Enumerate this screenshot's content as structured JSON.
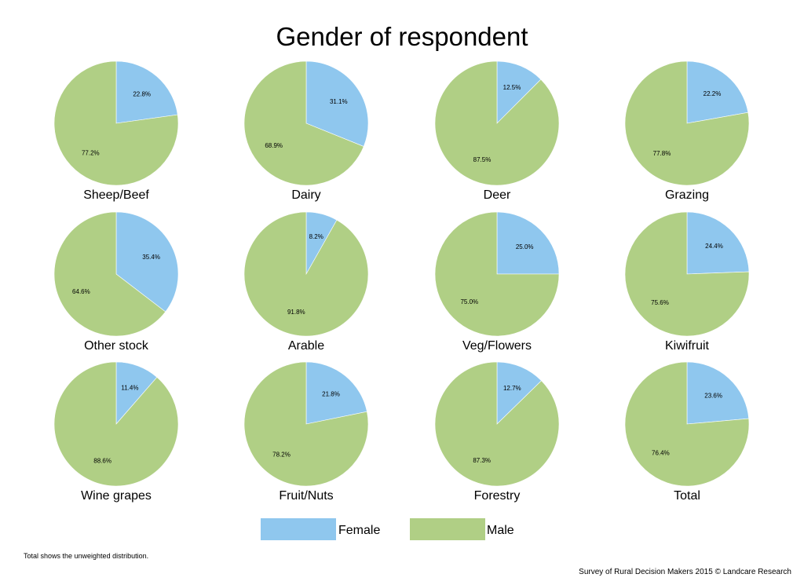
{
  "colors": {
    "female": "#8fc7ee",
    "male": "#b0cf85",
    "stroke": "#ffffff"
  },
  "chart_data": {
    "type": "pie",
    "title": "Gender of respondent",
    "legend": {
      "placement": "bottom",
      "entries": [
        "Female",
        "Male"
      ]
    },
    "pies": [
      {
        "label": "Sheep/Beef",
        "slices": [
          {
            "name": "Female",
            "value": 22.8
          },
          {
            "name": "Male",
            "value": 77.2
          }
        ]
      },
      {
        "label": "Dairy",
        "slices": [
          {
            "name": "Female",
            "value": 31.1
          },
          {
            "name": "Male",
            "value": 68.9
          }
        ]
      },
      {
        "label": "Deer",
        "slices": [
          {
            "name": "Female",
            "value": 12.5
          },
          {
            "name": "Male",
            "value": 87.5
          }
        ]
      },
      {
        "label": "Grazing",
        "slices": [
          {
            "name": "Female",
            "value": 22.2
          },
          {
            "name": "Male",
            "value": 77.8
          }
        ]
      },
      {
        "label": "Other stock",
        "slices": [
          {
            "name": "Female",
            "value": 35.4
          },
          {
            "name": "Male",
            "value": 64.6
          }
        ]
      },
      {
        "label": "Arable",
        "slices": [
          {
            "name": "Female",
            "value": 8.2
          },
          {
            "name": "Male",
            "value": 91.8
          }
        ]
      },
      {
        "label": "Veg/Flowers",
        "slices": [
          {
            "name": "Female",
            "value": 25.0
          },
          {
            "name": "Male",
            "value": 75.0
          }
        ]
      },
      {
        "label": "Kiwifruit",
        "slices": [
          {
            "name": "Female",
            "value": 24.4
          },
          {
            "name": "Male",
            "value": 75.6
          }
        ]
      },
      {
        "label": "Wine grapes",
        "slices": [
          {
            "name": "Female",
            "value": 11.4
          },
          {
            "name": "Male",
            "value": 88.6
          }
        ]
      },
      {
        "label": "Fruit/Nuts",
        "slices": [
          {
            "name": "Female",
            "value": 21.8
          },
          {
            "name": "Male",
            "value": 78.2
          }
        ]
      },
      {
        "label": "Forestry",
        "slices": [
          {
            "name": "Female",
            "value": 12.7
          },
          {
            "name": "Male",
            "value": 87.3
          }
        ]
      },
      {
        "label": "Total",
        "slices": [
          {
            "name": "Female",
            "value": 23.6
          },
          {
            "name": "Male",
            "value": 76.4
          }
        ]
      }
    ]
  },
  "footnote": "Total shows the unweighted distribution.",
  "source": "Survey of Rural Decision Makers 2015 © Landcare Research"
}
